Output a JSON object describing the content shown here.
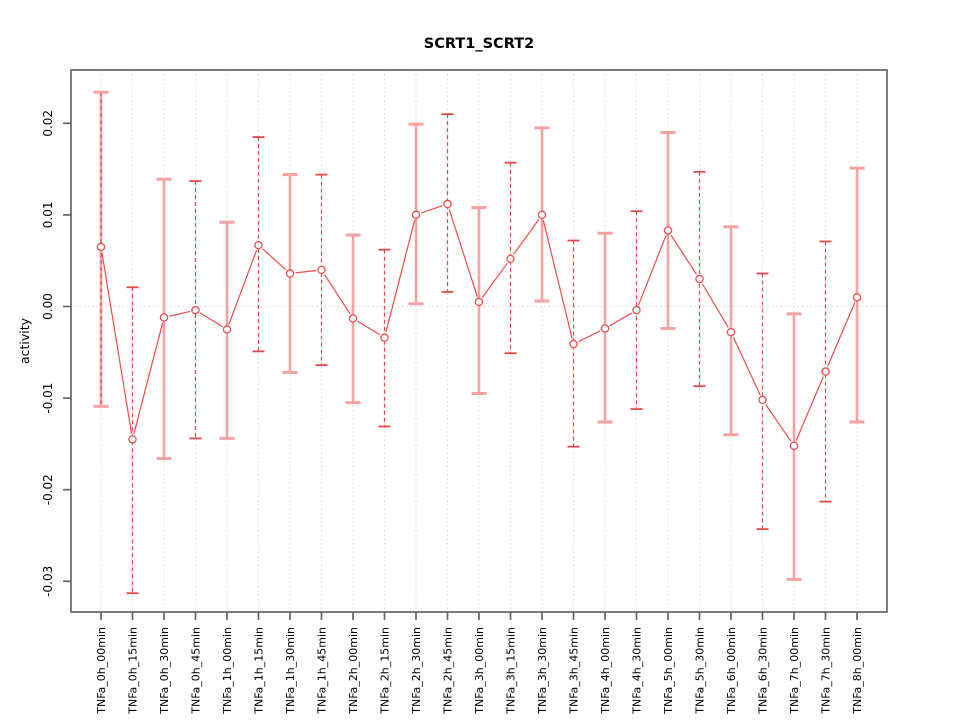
{
  "chart_data": {
    "type": "line",
    "title": "SCRT1_SCRT2",
    "xlabel": "",
    "ylabel": "activity",
    "legend": "none",
    "point_marker": "open-circle",
    "grid": {
      "vertical_per_category": true,
      "zero_line": true,
      "style": "dotted"
    },
    "ylim": [
      -0.0335,
      0.0258
    ],
    "ytick_labels": [
      "0.02",
      "0.01",
      "0.00",
      "-0.01",
      "-0.02",
      "-0.03"
    ],
    "ytick_values": [
      0.02,
      0.01,
      0.0,
      -0.01,
      -0.02,
      -0.03
    ],
    "categories": [
      "TNFa_0h_00min",
      "TNFa_0h_15min",
      "TNFa_0h_30min",
      "TNFa_0h_45min",
      "TNFa_1h_00min",
      "TNFa_1h_15min",
      "TNFa_1h_30min",
      "TNFa_1h_45min",
      "TNFa_2h_00min",
      "TNFa_2h_15min",
      "TNFa_2h_30min",
      "TNFa_2h_45min",
      "TNFa_3h_00min",
      "TNFa_3h_15min",
      "TNFa_3h_30min",
      "TNFa_3h_45min",
      "TNFa_4h_00min",
      "TNFa_4h_30min",
      "TNFa_5h_00min",
      "TNFa_5h_30min",
      "TNFa_6h_00min",
      "TNFa_6h_30min",
      "TNFa_7h_00min",
      "TNFa_7h_30min",
      "TNFa_8h_00min"
    ],
    "series": [
      {
        "name": "activity",
        "values": [
          0.0065,
          -0.0145,
          -0.0012,
          -0.0004,
          -0.0025,
          0.0067,
          0.0036,
          0.004,
          -0.0013,
          -0.0034,
          0.01,
          0.0112,
          0.0005,
          0.0052,
          0.01,
          -0.0041,
          -0.0024,
          -0.0004,
          0.0083,
          0.003,
          -0.0028,
          -0.0102,
          -0.0152,
          -0.0071,
          0.001
        ],
        "error_high": [
          0.0234,
          0.0021,
          0.0139,
          0.0137,
          0.0092,
          0.0185,
          0.0144,
          0.0144,
          0.0078,
          0.0062,
          0.0199,
          0.021,
          0.0108,
          0.0157,
          0.0195,
          0.0072,
          0.008,
          0.0104,
          0.019,
          0.0147,
          0.0087,
          0.0036,
          -0.0008,
          0.0071,
          0.0151
        ],
        "error_low": [
          -0.0109,
          -0.0313,
          -0.0166,
          -0.0144,
          -0.0144,
          -0.0049,
          -0.0072,
          -0.0064,
          -0.0105,
          -0.0131,
          0.0003,
          0.0016,
          -0.0095,
          -0.0051,
          0.0006,
          -0.0153,
          -0.0126,
          -0.0112,
          -0.0024,
          -0.0087,
          -0.014,
          -0.0243,
          -0.0298,
          -0.0213,
          -0.0126
        ]
      }
    ],
    "error_bar_style_alternating": [
      "solid-pink",
      "dashed-red"
    ],
    "colors": {
      "line": "#EC4D4D",
      "marker": "#EC4D4D",
      "error_bar_solid": "#F7A2A2",
      "error_bar_dashed": "#E74A4A",
      "gridline": "#D8D8D8",
      "axis": "#666666",
      "text": "#000000"
    }
  }
}
